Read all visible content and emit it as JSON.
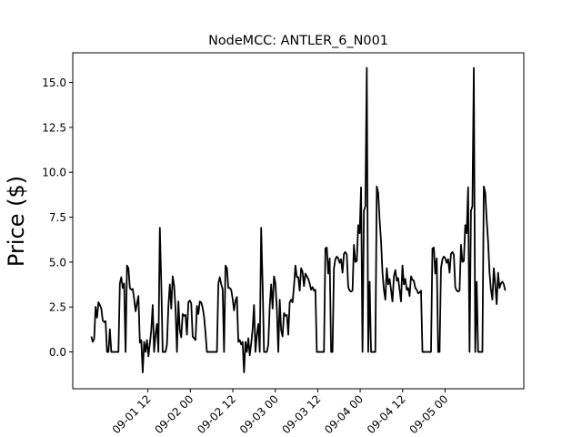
{
  "chart_data": {
    "type": "line",
    "title": "NodeMCC: ANTLER_6_N001",
    "xlabel": "",
    "ylabel": "Price ($)",
    "grid": false,
    "legend": "none",
    "line_color": "#000000",
    "x_start": "2021-08-31 20:00",
    "x_end": "2021-09-05 17:00",
    "xlim": [
      "2021-08-31 14:45",
      "2021-09-05 22:15"
    ],
    "ylim": [
      -2.05,
      16.65
    ],
    "yticks": [
      0.0,
      2.5,
      5.0,
      7.5,
      10.0,
      12.5,
      15.0
    ],
    "ytick_labels": [
      "0.0",
      "2.5",
      "5.0",
      "7.5",
      "10.0",
      "12.5",
      "15.0"
    ],
    "xticks": [
      "2021-09-01 12:00",
      "2021-09-02 00:00",
      "2021-09-02 12:00",
      "2021-09-03 00:00",
      "2021-09-03 12:00",
      "2021-09-04 00:00",
      "2021-09-04 12:00",
      "2021-09-05 00:00"
    ],
    "xtick_labels": [
      "09-01 12",
      "09-02 00",
      "09-02 12",
      "09-03 00",
      "09-03 12",
      "09-04 00",
      "09-04 12",
      "09-05 00"
    ],
    "values": [
      0.86,
      0.56,
      0.73,
      2.51,
      1.91,
      2.77,
      2.61,
      2.41,
      1.76,
      1.66,
      1.71,
      0.0,
      0.0,
      1.26,
      0.0,
      0.0,
      0.0,
      0.0,
      0.0,
      0.0,
      3.81,
      4.16,
      3.56,
      3.81,
      0.0,
      4.81,
      4.66,
      3.56,
      3.46,
      3.51,
      2.96,
      2.26,
      2.71,
      3.11,
      0.51,
      0.66,
      -1.14,
      0.56,
      0.0,
      0.66,
      -0.24,
      0.46,
      1.21,
      2.61,
      0.0,
      0.96,
      1.56,
      0.0,
      6.91,
      3.86,
      0.0,
      0.0,
      0.0,
      0.41,
      2.56,
      3.76,
      2.41,
      4.21,
      3.71,
      2.41,
      0.0,
      2.81,
      1.21,
      0.81,
      2.11,
      2.01,
      2.06,
      0.96,
      2.76,
      2.86,
      2.71,
      0.86,
      0.76,
      0.66,
      2.56,
      2.11,
      2.81,
      2.76,
      2.46,
      1.96,
      1.06,
      0.0,
      0.0,
      0.0,
      0.0,
      0.0,
      0.0,
      0.0,
      0.0,
      3.81,
      4.16,
      3.76,
      3.51,
      0.0,
      4.81,
      4.66,
      3.56,
      3.56,
      3.46,
      2.96,
      2.31,
      2.86,
      3.06,
      0.56,
      0.66,
      0.41,
      0.56,
      -1.14,
      0.56,
      0.0,
      0.76,
      -0.19,
      0.46,
      1.26,
      2.61,
      0.0,
      0.96,
      1.56,
      0.0,
      6.91,
      3.81,
      0.0,
      0.0,
      0.0,
      0.41,
      2.56,
      3.76,
      2.41,
      4.21,
      3.81,
      2.36,
      0.0,
      2.91,
      1.21,
      0.86,
      2.16,
      2.01,
      2.06,
      0.96,
      2.76,
      2.91,
      2.76,
      3.66,
      4.81,
      4.16,
      4.16,
      3.41,
      4.66,
      4.46,
      3.66,
      4.36,
      4.21,
      4.06,
      3.81,
      3.46,
      3.61,
      3.41,
      3.46,
      0.0,
      0.0,
      0.0,
      0.0,
      0.0,
      0.0,
      5.76,
      5.81,
      4.36,
      5.21,
      0.0,
      0.0,
      4.66,
      5.16,
      5.31,
      5.21,
      4.96,
      5.16,
      4.41,
      5.46,
      5.56,
      5.41,
      3.61,
      3.41,
      3.36,
      3.41,
      5.96,
      5.01,
      5.06,
      7.06,
      6.61,
      9.16,
      0.0,
      7.86,
      8.11,
      15.81,
      0.0,
      3.91,
      0.0,
      0.0,
      0.0,
      0.0,
      9.21,
      8.86,
      7.36,
      6.16,
      4.41,
      3.46,
      2.91,
      4.66,
      3.76,
      4.06,
      3.46,
      2.81,
      4.21,
      4.56,
      3.96,
      4.11,
      3.46,
      2.81,
      4.81,
      3.76,
      4.06,
      3.46,
      3.56,
      3.11,
      4.21,
      4.01,
      3.96,
      3.56,
      3.46,
      3.26,
      3.31,
      3.41,
      0.0,
      0.0,
      0.0,
      0.0,
      0.0,
      0.0,
      0.0,
      5.76,
      5.81,
      4.36,
      5.21,
      0.0,
      0.0,
      4.66,
      5.16,
      5.31,
      5.21,
      4.96,
      5.16,
      4.41,
      5.46,
      5.56,
      5.41,
      3.61,
      3.41,
      3.36,
      3.41,
      5.96,
      5.01,
      5.06,
      7.06,
      6.61,
      9.16,
      0.0,
      7.86,
      8.11,
      15.81,
      0.0,
      3.91,
      0.0,
      0.0,
      0.0,
      0.0,
      9.21,
      8.86,
      7.36,
      6.16,
      4.41,
      3.46,
      2.91,
      4.66,
      3.76,
      2.66,
      4.41,
      3.56,
      3.81,
      3.91,
      3.76,
      3.41
    ]
  }
}
